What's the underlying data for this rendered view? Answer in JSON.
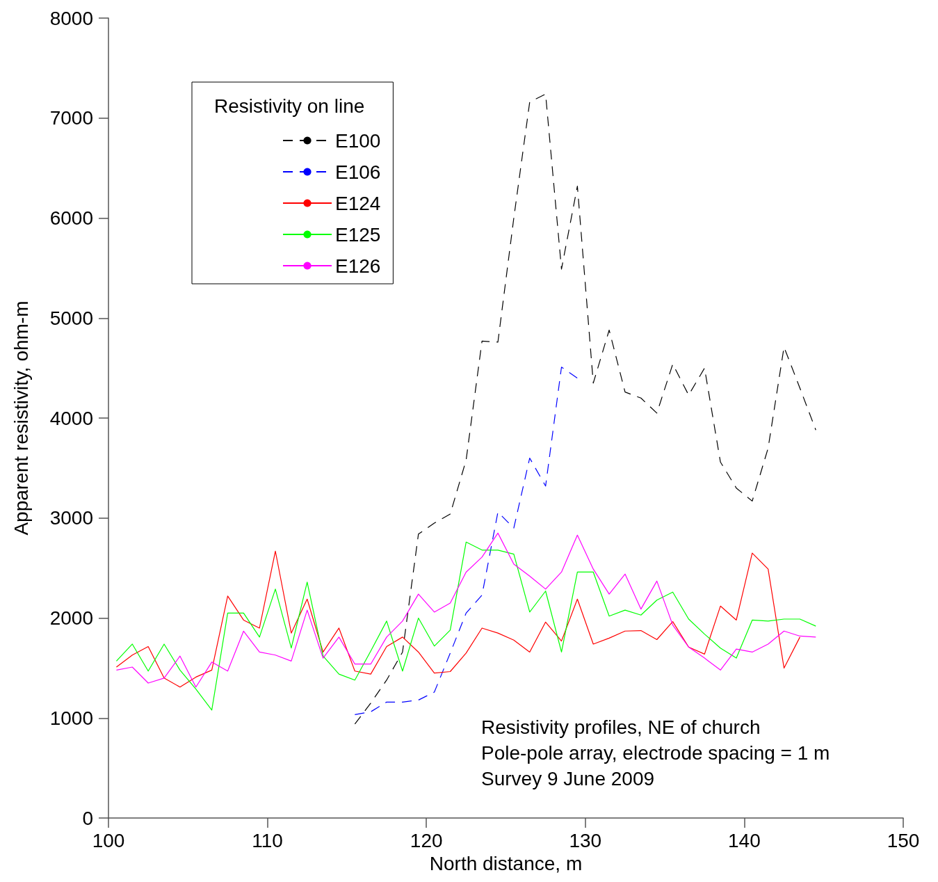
{
  "chart_data": {
    "type": "line",
    "xlabel": "North distance, m",
    "ylabel": "Apparent resistivity, ohm-m",
    "legend_title": "Resistivity on line",
    "xlim": [
      100,
      150
    ],
    "xticks": [
      100,
      110,
      120,
      130,
      140,
      150
    ],
    "ylim": [
      0,
      8000
    ],
    "yticks": [
      0,
      1000,
      2000,
      3000,
      4000,
      5000,
      6000,
      7000,
      8000
    ],
    "grid": false,
    "legend": "top left",
    "marker": "none",
    "annotations": [
      "Resistivity profiles, NE of church",
      "Pole-pole array, electrode spacing = 1 m",
      "Survey 9 June 2009"
    ],
    "series": [
      {
        "name": "E100",
        "color": "#000000",
        "line_style": "dashed",
        "x": [
          115.5,
          116.5,
          117.5,
          118.5,
          119.5,
          120.5,
          121.5,
          122.5,
          123.5,
          124.5,
          125.5,
          126.5,
          127.5,
          128.5,
          129.5,
          130.5,
          131.5,
          132.5,
          133.5,
          134.5,
          135.5,
          136.5,
          137.5,
          138.5,
          139.5,
          140.5,
          141.5,
          142.5,
          143.5,
          144.5
        ],
        "values": [
          940,
          1150,
          1380,
          1660,
          2840,
          2950,
          3040,
          3580,
          4770,
          4760,
          6000,
          7160,
          7240,
          5490,
          6320,
          4350,
          4880,
          4260,
          4200,
          4050,
          4540,
          4230,
          4500,
          3560,
          3300,
          3170,
          3700,
          4710,
          4300,
          3880
        ]
      },
      {
        "name": "E106",
        "color": "#0000ff",
        "line_style": "dashed",
        "x": [
          115.5,
          116.5,
          117.5,
          118.5,
          119.5,
          120.5,
          121.5,
          122.5,
          123.5,
          124.5,
          125.5,
          126.5,
          127.5,
          128.5,
          129.5
        ],
        "values": [
          1035,
          1063,
          1160,
          1160,
          1180,
          1260,
          1650,
          2050,
          2230,
          3060,
          2900,
          3600,
          3320,
          4510,
          4400
        ]
      },
      {
        "name": "E124",
        "color": "#ff0000",
        "line_style": "solid",
        "x": [
          100.5,
          101.5,
          102.5,
          103.5,
          104.5,
          105.5,
          106.5,
          107.5,
          108.5,
          109.5,
          110.5,
          111.5,
          112.5,
          113.5,
          114.5,
          115.5,
          116.5,
          117.5,
          118.5,
          119.5,
          120.5,
          121.5,
          122.5,
          123.5,
          124.5,
          125.5,
          126.5,
          127.5,
          128.5,
          129.5,
          130.5,
          131.5,
          132.5,
          133.5,
          134.5,
          135.5,
          136.5,
          137.5,
          138.5,
          139.5,
          140.5,
          141.5,
          142.5,
          143.5
        ],
        "values": [
          1510,
          1630,
          1715,
          1400,
          1310,
          1410,
          1480,
          2220,
          1980,
          1900,
          2670,
          1850,
          2190,
          1660,
          1900,
          1470,
          1440,
          1715,
          1810,
          1660,
          1450,
          1465,
          1650,
          1900,
          1850,
          1780,
          1660,
          1960,
          1770,
          2190,
          1740,
          1800,
          1870,
          1875,
          1785,
          1965,
          1710,
          1640,
          2120,
          1980,
          2650,
          2490,
          1500,
          1810
        ]
      },
      {
        "name": "E125",
        "color": "#00ff00",
        "line_style": "solid",
        "x": [
          100.5,
          101.5,
          102.5,
          103.5,
          104.5,
          105.5,
          106.5,
          107.5,
          108.5,
          109.5,
          110.5,
          111.5,
          112.5,
          113.5,
          114.5,
          115.5,
          116.5,
          117.5,
          118.5,
          119.5,
          120.5,
          121.5,
          122.5,
          123.5,
          124.5,
          125.5,
          126.5,
          127.5,
          128.5,
          129.5,
          130.5,
          131.5,
          132.5,
          133.5,
          134.5,
          135.5,
          136.5,
          137.5,
          138.5,
          139.5,
          140.5,
          141.5,
          142.5,
          143.5,
          144.5
        ],
        "values": [
          1570,
          1740,
          1470,
          1740,
          1480,
          1290,
          1080,
          2050,
          2050,
          1810,
          2290,
          1700,
          2360,
          1620,
          1440,
          1380,
          1670,
          1970,
          1470,
          2000,
          1720,
          1880,
          2760,
          2680,
          2680,
          2640,
          2060,
          2270,
          1660,
          2460,
          2460,
          2020,
          2080,
          2030,
          2180,
          2260,
          1990,
          1840,
          1700,
          1600,
          1980,
          1970,
          1990,
          1990,
          1920
        ]
      },
      {
        "name": "E126",
        "color": "#ff00ff",
        "line_style": "solid",
        "x": [
          100.5,
          101.5,
          102.5,
          103.5,
          104.5,
          105.5,
          106.5,
          107.5,
          108.5,
          109.5,
          110.5,
          111.5,
          112.5,
          113.5,
          114.5,
          115.5,
          116.5,
          117.5,
          118.5,
          119.5,
          120.5,
          121.5,
          122.5,
          123.5,
          124.5,
          125.5,
          126.5,
          127.5,
          128.5,
          129.5,
          130.5,
          131.5,
          132.5,
          133.5,
          134.5,
          135.5,
          136.5,
          137.5,
          138.5,
          139.5,
          140.5,
          141.5,
          142.5,
          143.5,
          144.5
        ],
        "values": [
          1480,
          1510,
          1350,
          1400,
          1620,
          1310,
          1560,
          1470,
          1870,
          1660,
          1630,
          1570,
          2080,
          1600,
          1810,
          1540,
          1540,
          1810,
          1970,
          2240,
          2060,
          2150,
          2460,
          2610,
          2850,
          2540,
          2420,
          2290,
          2460,
          2830,
          2490,
          2240,
          2440,
          2090,
          2370,
          1930,
          1710,
          1600,
          1480,
          1690,
          1660,
          1740,
          1870,
          1820,
          1810
        ]
      }
    ]
  }
}
